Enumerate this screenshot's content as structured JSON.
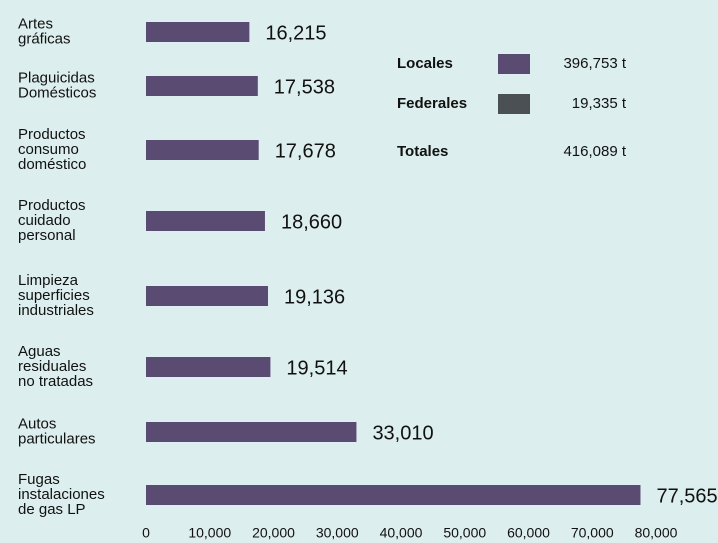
{
  "chart_data": {
    "type": "barh",
    "categories": [
      "Artes\ngráficas",
      "Plaguicidas\nDomésticos",
      "Productos\nconsumo\ndoméstico",
      "Productos\ncuidado\npersonal",
      "Limpieza\nsuperficies\nindustriales",
      "Aguas\nresiduales\nno tratadas",
      "Autos\nparticulares",
      "Fugas\ninstalaciones\nde gas LP"
    ],
    "values": [
      16215,
      17538,
      17678,
      18660,
      19136,
      19514,
      33010,
      77565
    ],
    "value_labels": [
      "16,215",
      "17,538",
      "17,678",
      "18,660",
      "19,136",
      "19,514",
      "33,010",
      "77,565"
    ],
    "color": "#5a4b73",
    "xlim": [
      0,
      80000
    ],
    "xticks": [
      0,
      {
        "value": 10000,
        "label": "10,000"
      },
      {
        "value": 20000,
        "label": "20,000"
      },
      {
        "value": 30000,
        "label": "30,000"
      },
      {
        "value": 40000,
        "label": "40,000"
      },
      {
        "value": 50000,
        "label": "50,000"
      },
      {
        "value": 60000,
        "label": "60,000"
      },
      {
        "value": 70000,
        "label": "70,000"
      },
      {
        "value": 80000,
        "label": "80,000"
      }
    ],
    "summary": [
      {
        "name": "Locales",
        "color": "#5a4b73",
        "value": 396753,
        "value_label": "396,753 t"
      },
      {
        "name": "Federales",
        "color": "#4b5055",
        "value": 19335,
        "value_label": "19,335 t"
      },
      {
        "name": "Totales",
        "value": 416089,
        "value_label": "416,089 t"
      }
    ]
  }
}
